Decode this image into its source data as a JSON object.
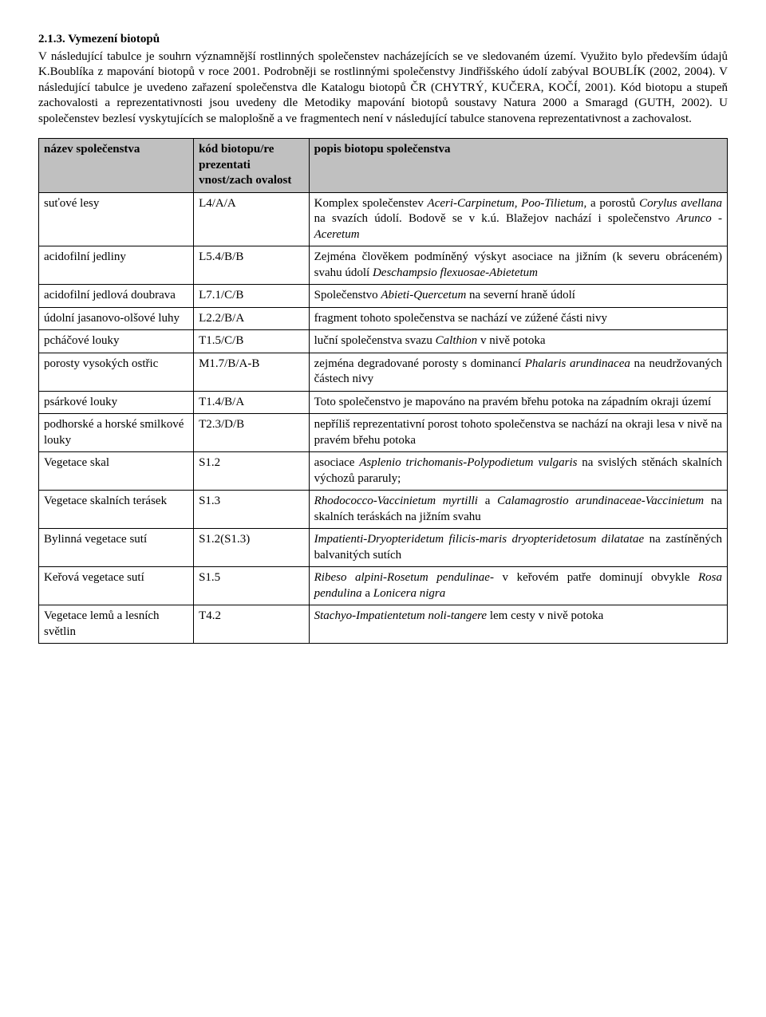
{
  "heading": "2.1.3. Vymezení biotopů",
  "paragraph": "V následující tabulce je souhrn významnější rostlinných společenstev  nacházejících se ve sledovaném území. Využito bylo především údajů K.Boublíka z mapování biotopů v roce 2001. Podrobněji se rostlinnými společenstvy Jindřišského údolí zabýval BOUBLÍK (2002, 2004). V následující tabulce je uvedeno zařazení společenstva dle Katalogu biotopů ČR (CHYTRÝ, KUČERA, KOČÍ, 2001). Kód biotopu a stupeň zachovalosti a reprezentativnosti jsou uvedeny dle Metodiky mapování biotopů soustavy Natura 2000 a Smaragd  (GUTH, 2002). U společenstev bezlesí vyskytujících se maloplošně a ve fragmentech není v následující tabulce stanovena reprezentativnost a zachovalost.",
  "headers": {
    "name": "název společenstva",
    "code": "kód biotopu/re prezentati vnost/zach ovalost",
    "desc": "popis biotopu společenstva"
  },
  "rows": [
    {
      "name": "suťové lesy",
      "code": "L4/A/A",
      "desc": "Komplex společenstev <i>Aceri-Carpinetum, Poo-Tilietum,</i> a porostů  <i>Corylus avellana</i> na svazích údolí. Bodově se v k.ú. Blažejov nachází i společenstvo <i>Arunco -Aceretum</i>"
    },
    {
      "name": "acidofilní jedliny",
      "code": "L5.4/B/B",
      "desc": "Zejména člověkem podmíněný výskyt asociace na jižním (k  severu  obráceném)  svahu  údolí  <i>Deschampsio flexuosae-Abietetum</i>"
    },
    {
      "name": "acidofilní jedlová doubrava",
      "code": "L7.1/C/B",
      "desc": "Společenstvo <i>Abieti-Quercetum</i> na severní hraně údolí"
    },
    {
      "name": "údolní jasanovo-olšové luhy",
      "code": "L2.2/B/A",
      "desc": "fragment tohoto společenstva se nachází ve zúžené části nivy"
    },
    {
      "name": "pcháčové louky",
      "code": "T1.5/C/B",
      "desc": "luční společenstva svazu <i>Calthion</i> v nivě potoka"
    },
    {
      "name": "porosty vysokých ostřic",
      "code": "M1.7/B/A-B",
      "desc": "zejména  degradované  porosty  s dominancí  <i>Phalaris arundinacea</i> na neudržovaných částech nivy"
    },
    {
      "name": "psárkové louky",
      "code": "T1.4/B/A",
      "desc": "Toto společenstvo je mapováno na pravém břehu potoka na západním okraji území"
    },
    {
      "name": "podhorské    a horské smilkové louky",
      "code": "T2.3/D/B",
      "desc": "nepříliš  reprezentativní  porost  tohoto  společenstva  se nachází na okraji lesa v nivě na pravém břehu potoka"
    },
    {
      "name": "Vegetace skal",
      "code": "S1.2",
      "desc": "asociace <i>Asplenio trichomanis-Polypodietum vulgaris</i> na svislých stěnách skalních výchozů pararuly;"
    },
    {
      "name": "Vegetace skalních terásek",
      "code": "S1.3",
      "desc": "<i>Rhodococco-Vaccinietum    myrtilli</i>    a    <i>Calamagrostio arundinaceae-Vaccinietum</i>  na  skalních  teráskách  na jižním svahu"
    },
    {
      "name": "Bylinná vegetace sutí",
      "code": "S1.2(S1.3)",
      "desc": "<i>Impatienti-Dryopteridetum filicis-maris dryopteridetosum dilatatae</i> na zastíněných balvanitých sutích"
    },
    {
      "name": "Keřová vegetace sutí",
      "code": "S1.5",
      "desc": "<i>Ribeso alpini-Rosetum pendulinae-</i>  v  keřovém  patře dominují obvykle <i>Rosa pendulina</i> a <i>Lonicera nigra</i>"
    },
    {
      "name": "Vegetace lemů a lesních světlin",
      "code": "T4.2",
      "desc": "<i>Stachyo-Impatientetum  noli-tangere</i>  lem  cesty  v nivě potoka"
    }
  ]
}
